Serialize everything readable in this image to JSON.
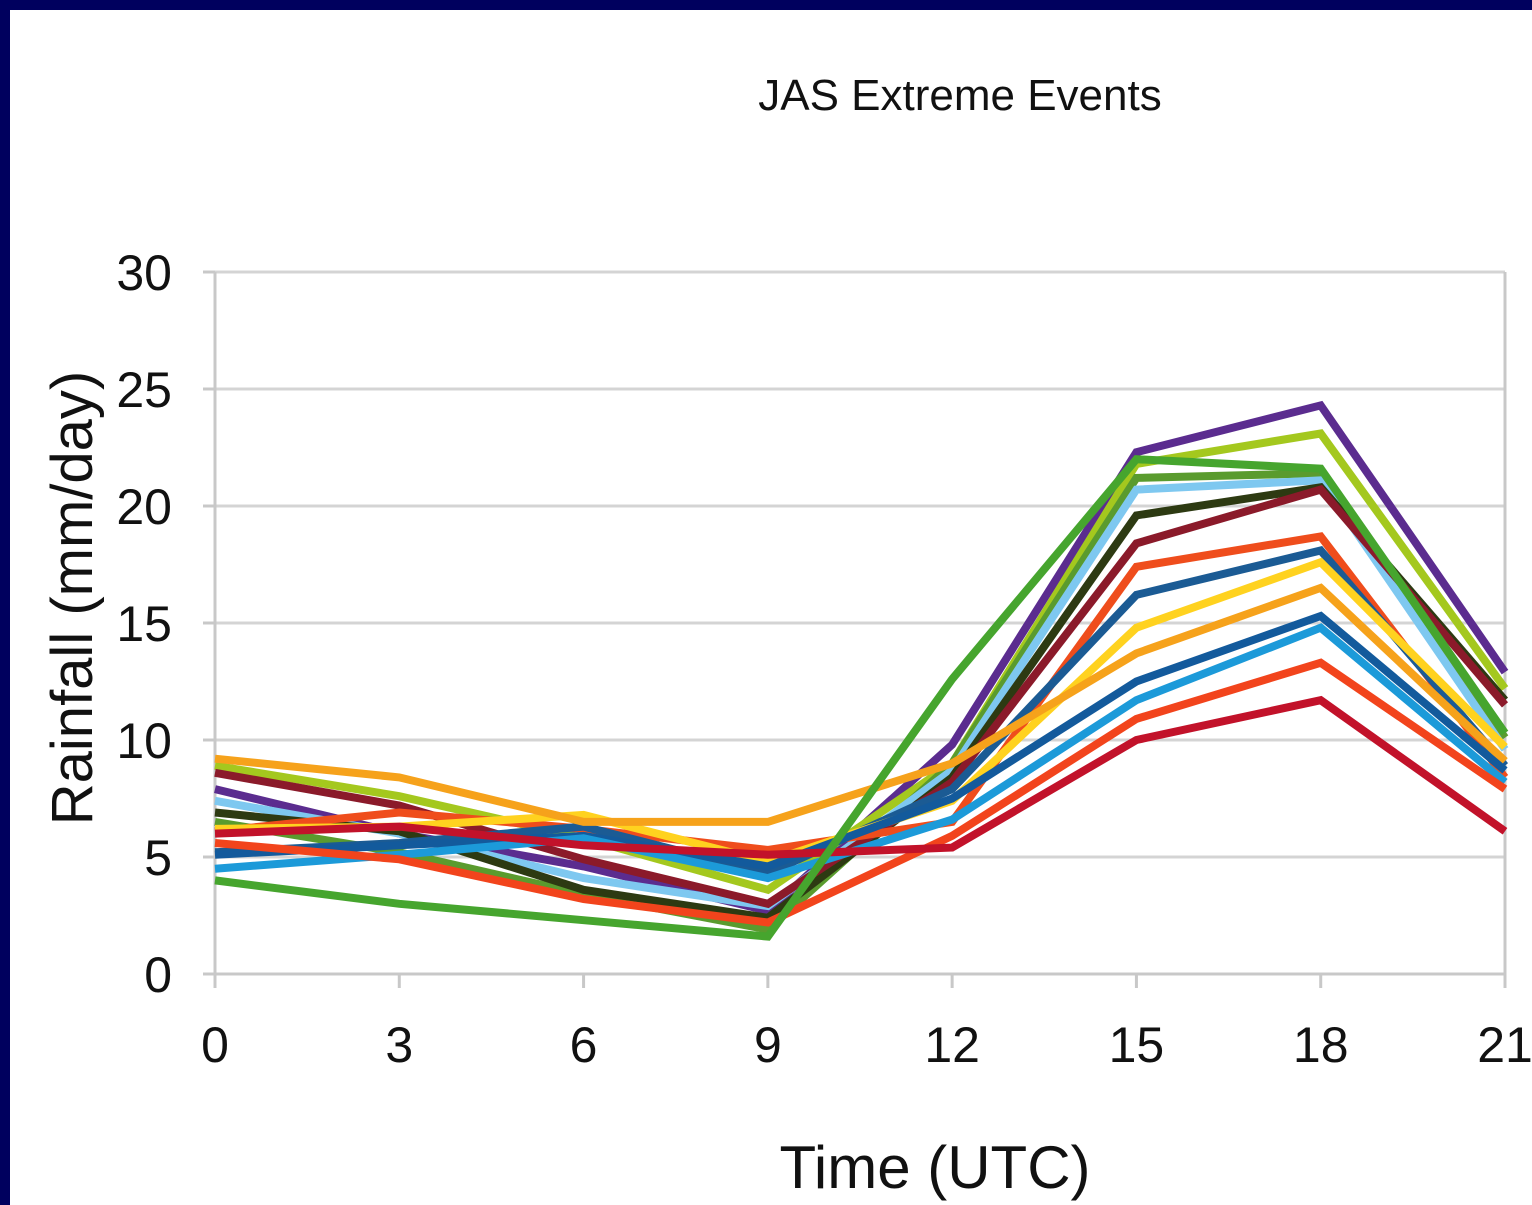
{
  "chart_data": {
    "type": "line",
    "title": "JAS Extreme Events",
    "xlabel": "Time (UTC)",
    "ylabel": "Rainfall (mm/day)",
    "x": [
      0,
      3,
      6,
      9,
      12,
      15,
      18,
      21
    ],
    "x_tick_labels": [
      "0",
      "3",
      "6",
      "9",
      "12",
      "15",
      "18",
      "21"
    ],
    "ylim": [
      0,
      30
    ],
    "y_ticks": [
      0,
      5,
      10,
      15,
      20,
      25,
      30
    ],
    "grid": true,
    "legend": "none",
    "series": [
      {
        "color": "#5b2c8f",
        "values": [
          7.9,
          6.0,
          4.6,
          2.7,
          9.8,
          22.3,
          24.3,
          12.9
        ]
      },
      {
        "color": "#a4c81e",
        "values": [
          8.9,
          7.6,
          5.8,
          3.6,
          9.0,
          21.8,
          23.1,
          12.2
        ]
      },
      {
        "color": "#5a9b2e",
        "values": [
          6.5,
          5.2,
          3.4,
          1.9,
          9.0,
          21.2,
          21.4,
          10.1
        ]
      },
      {
        "color": "#7ec8f0",
        "values": [
          7.4,
          6.0,
          4.1,
          2.9,
          8.7,
          20.7,
          21.1,
          9.6
        ]
      },
      {
        "color": "#2d3a12",
        "values": [
          6.9,
          6.1,
          3.6,
          2.4,
          8.4,
          19.6,
          20.8,
          11.7
        ]
      },
      {
        "color": "#8b1a2a",
        "values": [
          8.6,
          7.2,
          4.9,
          3.0,
          8.2,
          18.4,
          20.7,
          11.5
        ]
      },
      {
        "color": "#ef4d1c",
        "values": [
          6.1,
          6.9,
          6.2,
          5.3,
          6.5,
          17.4,
          18.7,
          8.4
        ]
      },
      {
        "color": "#1b5b94",
        "values": [
          5.2,
          5.6,
          6.3,
          4.3,
          7.9,
          16.2,
          18.1,
          8.9
        ]
      },
      {
        "color": "#ffd21f",
        "values": [
          6.2,
          6.3,
          6.8,
          4.8,
          7.4,
          14.8,
          17.6,
          9.7
        ]
      },
      {
        "color": "#f6a21b",
        "values": [
          9.2,
          8.4,
          6.5,
          6.5,
          9.0,
          13.7,
          16.5,
          9.1
        ]
      },
      {
        "color": "#135a9c",
        "values": [
          5.1,
          5.5,
          5.9,
          4.6,
          7.5,
          12.5,
          15.3,
          8.7
        ]
      },
      {
        "color": "#1c9ad9",
        "values": [
          4.5,
          5.1,
          5.8,
          4.1,
          6.6,
          11.7,
          14.8,
          8.2
        ]
      },
      {
        "color": "#f2441c",
        "values": [
          5.6,
          4.9,
          3.2,
          2.2,
          5.9,
          10.9,
          13.3,
          7.9
        ]
      },
      {
        "color": "#c2122a",
        "values": [
          6.0,
          6.3,
          5.5,
          5.1,
          5.4,
          10.0,
          11.7,
          6.1
        ]
      },
      {
        "color": "#46a52e",
        "values": [
          4.0,
          3.0,
          2.3,
          1.6,
          12.6,
          22.0,
          21.6,
          10.3
        ]
      }
    ]
  }
}
